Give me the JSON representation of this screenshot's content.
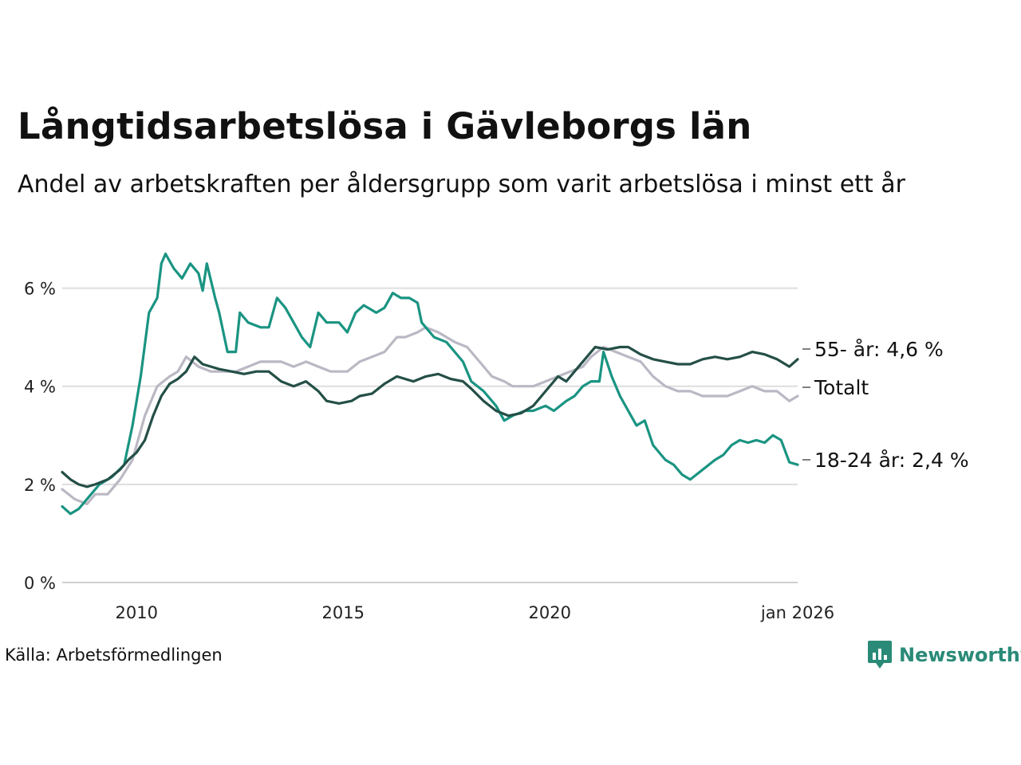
{
  "header": {
    "title": "Långtidsarbetslösa i Gävleborgs län",
    "subtitle": "Andel av arbetskraften per åldersgrupp som varit arbetslösa i minst ett år"
  },
  "footer": {
    "source": "Källa: Arbetsförmedlingen"
  },
  "brand": {
    "name": "Newsworthy",
    "logo_icon": "bar-chart-flag-icon",
    "color": "#2a8a78"
  },
  "chart_data": {
    "type": "line",
    "title": "Långtidsarbetslösa i Gävleborgs län",
    "subtitle": "Andel av arbetskraften per åldersgrupp som varit arbetslösa i minst ett år",
    "xlabel": "",
    "ylabel": "",
    "xlim": [
      2008.2,
      2026.0
    ],
    "ylim": [
      0,
      7
    ],
    "grid": true,
    "x_ticks": [
      {
        "value": 2010,
        "label": "2010"
      },
      {
        "value": 2015,
        "label": "2015"
      },
      {
        "value": 2020,
        "label": "2020"
      },
      {
        "value": 2026.0,
        "label": "jan 2026"
      }
    ],
    "y_ticks": [
      {
        "value": 0,
        "label": "0 %"
      },
      {
        "value": 2,
        "label": "2 %"
      },
      {
        "value": 4,
        "label": "4 %"
      },
      {
        "value": 6,
        "label": "6 %"
      }
    ],
    "series": [
      {
        "name": "Totalt",
        "label": "Totalt",
        "color": "#bbb8c4",
        "points": [
          [
            2008.2,
            1.9
          ],
          [
            2008.5,
            1.7
          ],
          [
            2008.8,
            1.6
          ],
          [
            2009.0,
            1.8
          ],
          [
            2009.3,
            1.8
          ],
          [
            2009.6,
            2.1
          ],
          [
            2009.9,
            2.5
          ],
          [
            2010.2,
            3.4
          ],
          [
            2010.5,
            4.0
          ],
          [
            2010.8,
            4.2
          ],
          [
            2011.0,
            4.3
          ],
          [
            2011.2,
            4.6
          ],
          [
            2011.5,
            4.4
          ],
          [
            2011.8,
            4.3
          ],
          [
            2012.1,
            4.3
          ],
          [
            2012.4,
            4.3
          ],
          [
            2012.7,
            4.4
          ],
          [
            2013.0,
            4.5
          ],
          [
            2013.5,
            4.5
          ],
          [
            2013.8,
            4.4
          ],
          [
            2014.1,
            4.5
          ],
          [
            2014.4,
            4.4
          ],
          [
            2014.7,
            4.3
          ],
          [
            2015.1,
            4.3
          ],
          [
            2015.4,
            4.5
          ],
          [
            2015.7,
            4.6
          ],
          [
            2016.0,
            4.7
          ],
          [
            2016.3,
            5.0
          ],
          [
            2016.5,
            5.0
          ],
          [
            2016.8,
            5.1
          ],
          [
            2017.0,
            5.2
          ],
          [
            2017.3,
            5.1
          ],
          [
            2017.7,
            4.9
          ],
          [
            2018.0,
            4.8
          ],
          [
            2018.3,
            4.5
          ],
          [
            2018.6,
            4.2
          ],
          [
            2018.9,
            4.1
          ],
          [
            2019.1,
            4.0
          ],
          [
            2019.6,
            4.0
          ],
          [
            2019.9,
            4.1
          ],
          [
            2020.2,
            4.2
          ],
          [
            2020.5,
            4.3
          ],
          [
            2020.8,
            4.4
          ],
          [
            2021.0,
            4.6
          ],
          [
            2021.3,
            4.8
          ],
          [
            2021.6,
            4.7
          ],
          [
            2021.9,
            4.6
          ],
          [
            2022.2,
            4.5
          ],
          [
            2022.5,
            4.2
          ],
          [
            2022.8,
            4.0
          ],
          [
            2023.1,
            3.9
          ],
          [
            2023.4,
            3.9
          ],
          [
            2023.7,
            3.8
          ],
          [
            2024.0,
            3.8
          ],
          [
            2024.3,
            3.8
          ],
          [
            2024.6,
            3.9
          ],
          [
            2024.9,
            4.0
          ],
          [
            2025.2,
            3.9
          ],
          [
            2025.5,
            3.9
          ],
          [
            2025.8,
            3.7
          ],
          [
            2026.0,
            3.8
          ]
        ]
      },
      {
        "name": "18-24 år",
        "label": "18-24 år: 2,4 %",
        "color": "#1a9482",
        "points": [
          [
            2008.2,
            1.55
          ],
          [
            2008.4,
            1.4
          ],
          [
            2008.6,
            1.5
          ],
          [
            2008.8,
            1.7
          ],
          [
            2009.1,
            2.0
          ],
          [
            2009.4,
            2.15
          ],
          [
            2009.7,
            2.4
          ],
          [
            2009.9,
            3.2
          ],
          [
            2010.1,
            4.2
          ],
          [
            2010.3,
            5.5
          ],
          [
            2010.5,
            5.8
          ],
          [
            2010.6,
            6.5
          ],
          [
            2010.7,
            6.7
          ],
          [
            2010.9,
            6.4
          ],
          [
            2011.1,
            6.2
          ],
          [
            2011.3,
            6.5
          ],
          [
            2011.5,
            6.3
          ],
          [
            2011.6,
            5.95
          ],
          [
            2011.7,
            6.5
          ],
          [
            2011.9,
            5.8
          ],
          [
            2012.0,
            5.5
          ],
          [
            2012.2,
            4.7
          ],
          [
            2012.4,
            4.7
          ],
          [
            2012.5,
            5.5
          ],
          [
            2012.7,
            5.3
          ],
          [
            2013.0,
            5.2
          ],
          [
            2013.2,
            5.2
          ],
          [
            2013.4,
            5.8
          ],
          [
            2013.6,
            5.6
          ],
          [
            2013.8,
            5.3
          ],
          [
            2014.0,
            5.0
          ],
          [
            2014.2,
            4.8
          ],
          [
            2014.4,
            5.5
          ],
          [
            2014.6,
            5.3
          ],
          [
            2014.9,
            5.3
          ],
          [
            2015.1,
            5.1
          ],
          [
            2015.3,
            5.5
          ],
          [
            2015.5,
            5.65
          ],
          [
            2015.8,
            5.5
          ],
          [
            2016.0,
            5.6
          ],
          [
            2016.2,
            5.9
          ],
          [
            2016.4,
            5.8
          ],
          [
            2016.6,
            5.8
          ],
          [
            2016.8,
            5.7
          ],
          [
            2016.9,
            5.3
          ],
          [
            2017.2,
            5.0
          ],
          [
            2017.5,
            4.9
          ],
          [
            2017.7,
            4.7
          ],
          [
            2017.9,
            4.5
          ],
          [
            2018.1,
            4.1
          ],
          [
            2018.4,
            3.9
          ],
          [
            2018.7,
            3.6
          ],
          [
            2018.9,
            3.3
          ],
          [
            2019.1,
            3.4
          ],
          [
            2019.4,
            3.5
          ],
          [
            2019.6,
            3.5
          ],
          [
            2019.9,
            3.6
          ],
          [
            2020.1,
            3.5
          ],
          [
            2020.4,
            3.7
          ],
          [
            2020.6,
            3.8
          ],
          [
            2020.8,
            4.0
          ],
          [
            2021.0,
            4.1
          ],
          [
            2021.2,
            4.1
          ],
          [
            2021.3,
            4.7
          ],
          [
            2021.5,
            4.2
          ],
          [
            2021.7,
            3.8
          ],
          [
            2021.9,
            3.5
          ],
          [
            2022.1,
            3.2
          ],
          [
            2022.3,
            3.3
          ],
          [
            2022.5,
            2.8
          ],
          [
            2022.8,
            2.5
          ],
          [
            2023.0,
            2.4
          ],
          [
            2023.2,
            2.2
          ],
          [
            2023.4,
            2.1
          ],
          [
            2023.7,
            2.3
          ],
          [
            2024.0,
            2.5
          ],
          [
            2024.2,
            2.6
          ],
          [
            2024.4,
            2.8
          ],
          [
            2024.6,
            2.9
          ],
          [
            2024.8,
            2.85
          ],
          [
            2025.0,
            2.9
          ],
          [
            2025.2,
            2.85
          ],
          [
            2025.4,
            3.0
          ],
          [
            2025.6,
            2.9
          ],
          [
            2025.8,
            2.45
          ],
          [
            2026.0,
            2.4
          ]
        ]
      },
      {
        "name": "55- år",
        "label": "55- år: 4,6 %",
        "color": "#244f47",
        "points": [
          [
            2008.2,
            2.25
          ],
          [
            2008.4,
            2.1
          ],
          [
            2008.6,
            2.0
          ],
          [
            2008.8,
            1.95
          ],
          [
            2009.0,
            2.0
          ],
          [
            2009.3,
            2.1
          ],
          [
            2009.6,
            2.3
          ],
          [
            2009.8,
            2.5
          ],
          [
            2010.0,
            2.65
          ],
          [
            2010.2,
            2.9
          ],
          [
            2010.4,
            3.4
          ],
          [
            2010.6,
            3.8
          ],
          [
            2010.8,
            4.05
          ],
          [
            2011.0,
            4.15
          ],
          [
            2011.2,
            4.3
          ],
          [
            2011.4,
            4.6
          ],
          [
            2011.6,
            4.45
          ],
          [
            2011.8,
            4.4
          ],
          [
            2012.0,
            4.35
          ],
          [
            2012.3,
            4.3
          ],
          [
            2012.6,
            4.25
          ],
          [
            2012.9,
            4.3
          ],
          [
            2013.2,
            4.3
          ],
          [
            2013.5,
            4.1
          ],
          [
            2013.8,
            4.0
          ],
          [
            2014.1,
            4.1
          ],
          [
            2014.4,
            3.9
          ],
          [
            2014.6,
            3.7
          ],
          [
            2014.9,
            3.65
          ],
          [
            2015.2,
            3.7
          ],
          [
            2015.4,
            3.8
          ],
          [
            2015.7,
            3.85
          ],
          [
            2016.0,
            4.05
          ],
          [
            2016.3,
            4.2
          ],
          [
            2016.5,
            4.15
          ],
          [
            2016.7,
            4.1
          ],
          [
            2017.0,
            4.2
          ],
          [
            2017.3,
            4.25
          ],
          [
            2017.6,
            4.15
          ],
          [
            2017.9,
            4.1
          ],
          [
            2018.1,
            3.95
          ],
          [
            2018.4,
            3.7
          ],
          [
            2018.7,
            3.5
          ],
          [
            2019.0,
            3.4
          ],
          [
            2019.3,
            3.45
          ],
          [
            2019.6,
            3.6
          ],
          [
            2019.9,
            3.9
          ],
          [
            2020.2,
            4.2
          ],
          [
            2020.4,
            4.1
          ],
          [
            2020.6,
            4.3
          ],
          [
            2020.9,
            4.6
          ],
          [
            2021.1,
            4.8
          ],
          [
            2021.4,
            4.75
          ],
          [
            2021.7,
            4.8
          ],
          [
            2021.9,
            4.8
          ],
          [
            2022.2,
            4.65
          ],
          [
            2022.5,
            4.55
          ],
          [
            2022.8,
            4.5
          ],
          [
            2023.1,
            4.45
          ],
          [
            2023.4,
            4.45
          ],
          [
            2023.7,
            4.55
          ],
          [
            2024.0,
            4.6
          ],
          [
            2024.3,
            4.55
          ],
          [
            2024.6,
            4.6
          ],
          [
            2024.9,
            4.7
          ],
          [
            2025.2,
            4.65
          ],
          [
            2025.5,
            4.55
          ],
          [
            2025.7,
            4.45
          ],
          [
            2025.8,
            4.4
          ],
          [
            2026.0,
            4.55
          ]
        ]
      }
    ]
  }
}
